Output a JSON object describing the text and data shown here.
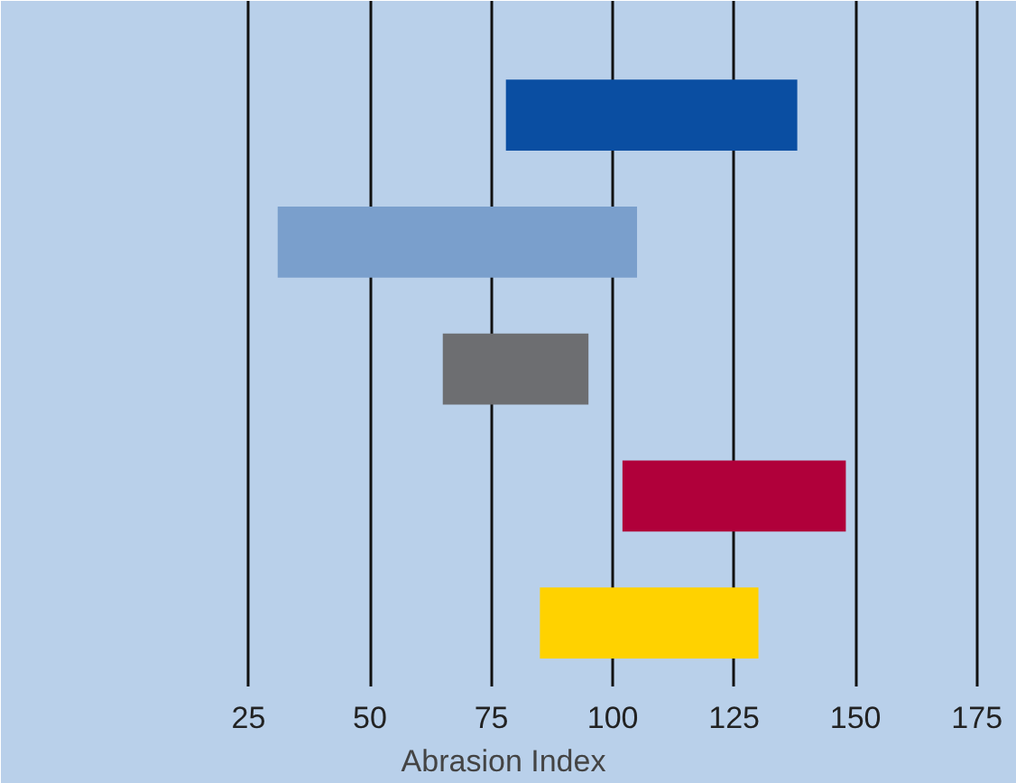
{
  "chart_data": {
    "type": "bar",
    "orientation": "horizontal",
    "xlabel": "Abrasion Index",
    "categories": [
      null,
      null,
      null,
      null,
      null
    ],
    "base": [
      78,
      31,
      65,
      102,
      85
    ],
    "values": [
      60,
      74,
      30,
      46,
      45
    ],
    "colors": [
      "#0a4ea2",
      "#7a9fcc",
      "#6d6e71",
      "#b0003a",
      "#ffd200"
    ],
    "xlim": [
      -26,
      181
    ],
    "xticks": [
      25,
      50,
      75,
      100,
      125,
      150,
      175
    ],
    "grid": "x"
  }
}
